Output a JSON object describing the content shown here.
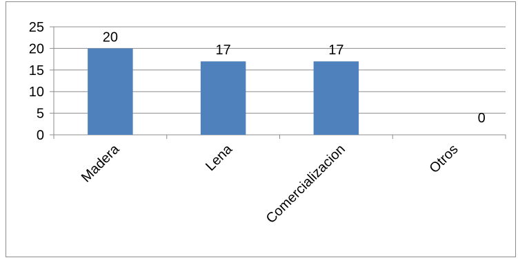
{
  "chart_data": {
    "type": "bar",
    "categories": [
      "Madera",
      "Lena",
      "Comercializacion",
      "Otros"
    ],
    "values": [
      20,
      17,
      17,
      0
    ],
    "title": "",
    "xlabel": "",
    "ylabel": "",
    "ylim": [
      0,
      25
    ],
    "yticks": [
      0,
      5,
      10,
      15,
      20,
      25
    ],
    "grid": true,
    "legend": "none",
    "bar_color": "#4f81bd",
    "grid_color": "#8c8c8c"
  }
}
